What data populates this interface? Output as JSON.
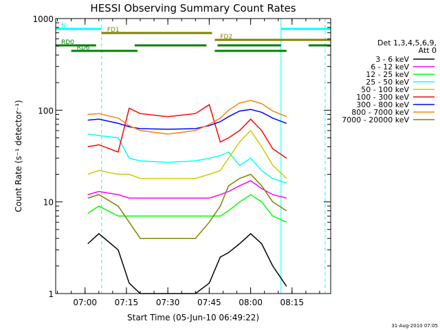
{
  "chart_data": {
    "type": "line",
    "title": "HESSI Observing Summary Count Rates",
    "xlabel": "Start Time (05-Jun-10 06:49:22)",
    "ylabel": "Count Rate (s⁻¹ detector⁻¹)",
    "y_scale": "log",
    "ylim": [
      1,
      1000
    ],
    "xlim": [
      "06:49:22",
      "08:29:00"
    ],
    "grid": false,
    "legend_position": "right",
    "y_ticks": [
      {
        "value": 1,
        "label": "1"
      },
      {
        "value": 10,
        "label": "10"
      },
      {
        "value": 100,
        "label": "100"
      },
      {
        "value": 1000,
        "label": "1000"
      }
    ],
    "x_ticks": [
      {
        "value": "07:00",
        "label": "07:00"
      },
      {
        "value": "07:15",
        "label": "07:15"
      },
      {
        "value": "07:30",
        "label": "07:30"
      },
      {
        "value": "07:45",
        "label": "07:45"
      },
      {
        "value": "08:00",
        "label": "08:00"
      },
      {
        "value": "08:15",
        "label": "08:15"
      }
    ],
    "legend_title_lines": [
      "Det 1,3,4,5,6,9,",
      "Att 0"
    ],
    "x": [
      "06:55",
      "07:01",
      "07:05",
      "07:12",
      "07:16",
      "07:20",
      "07:30",
      "07:40",
      "07:45",
      "07:49",
      "07:52",
      "07:56",
      "08:00",
      "08:04",
      "08:08",
      "08:13"
    ],
    "series": [
      {
        "name": "3 - 6 keV",
        "color": "#000000",
        "values": [
          null,
          3.5,
          4.5,
          3.0,
          1.3,
          1.0,
          1.0,
          1.0,
          1.3,
          2.5,
          2.8,
          3.5,
          4.5,
          3.5,
          2.0,
          1.2
        ]
      },
      {
        "name": "6 - 12 keV",
        "color": "#ff00ff",
        "values": [
          null,
          12,
          13,
          12,
          11,
          11,
          11,
          11,
          11,
          12,
          13,
          15,
          17,
          14,
          12,
          11
        ]
      },
      {
        "name": "12 - 25 keV",
        "color": "#00ff00",
        "values": [
          null,
          7.5,
          9,
          7,
          7,
          7,
          7,
          7,
          7,
          7,
          8,
          10,
          12,
          10,
          7,
          6
        ]
      },
      {
        "name": "25 - 50 keV",
        "color": "#00ffff",
        "values": [
          null,
          55,
          53,
          50,
          30,
          28,
          27,
          28,
          30,
          32,
          35,
          25,
          30,
          22,
          18,
          16
        ]
      },
      {
        "name": "50 - 100 keV",
        "color": "#cccc00",
        "values": [
          null,
          20,
          22,
          20,
          20,
          18,
          18,
          18,
          20,
          22,
          30,
          45,
          60,
          40,
          25,
          18
        ]
      },
      {
        "name": "100 - 300 keV",
        "color": "#ff0000",
        "values": [
          null,
          40,
          42,
          35,
          105,
          92,
          85,
          92,
          115,
          45,
          50,
          60,
          80,
          60,
          38,
          30
        ]
      },
      {
        "name": "300 - 800 keV",
        "color": "#0000ff",
        "values": [
          null,
          78,
          80,
          72,
          66,
          63,
          62,
          63,
          68,
          75,
          85,
          98,
          102,
          95,
          82,
          72
        ]
      },
      {
        "name": "800 - 7000 keV",
        "color": "#ff8000",
        "values": [
          null,
          90,
          92,
          82,
          68,
          60,
          55,
          60,
          70,
          82,
          100,
          120,
          128,
          118,
          98,
          85
        ]
      },
      {
        "name": "7000 - 20000 keV",
        "color": "#808000",
        "values": [
          null,
          11,
          12,
          9,
          6,
          4,
          4,
          4,
          6,
          9,
          15,
          18,
          20,
          15,
          10,
          8
        ]
      }
    ],
    "flag_bars": [
      {
        "label": "N",
        "color": "#00ffff",
        "segments": [
          [
            "06:49:22",
            "07:06"
          ],
          [
            "08:11",
            "08:29"
          ]
        ]
      },
      {
        "label": "FD1",
        "color": "#808000",
        "segments": [
          [
            "07:06",
            "07:46"
          ]
        ]
      },
      {
        "label": "FD2",
        "color": "#808000",
        "segments": [
          [
            "07:47",
            "08:29"
          ]
        ]
      },
      {
        "label": "RD0",
        "color": "#008000",
        "segments": [
          [
            "06:49:22",
            "07:04"
          ],
          [
            "07:18",
            "07:44"
          ],
          [
            "07:48",
            "08:11"
          ],
          [
            "08:21",
            "08:29"
          ]
        ]
      },
      {
        "label": "RD6",
        "color": "#008000",
        "segments": [
          [
            "06:55",
            "07:19"
          ],
          [
            "07:47",
            "08:13"
          ]
        ]
      }
    ],
    "vertical_markers": [
      {
        "time": "06:49:22",
        "style": "solid"
      },
      {
        "time": "07:06",
        "style": "dashed"
      },
      {
        "time": "08:11",
        "style": "solid"
      },
      {
        "time": "08:27",
        "style": "dashed"
      }
    ],
    "footer_note": "31-Aug-2010 07:05"
  }
}
